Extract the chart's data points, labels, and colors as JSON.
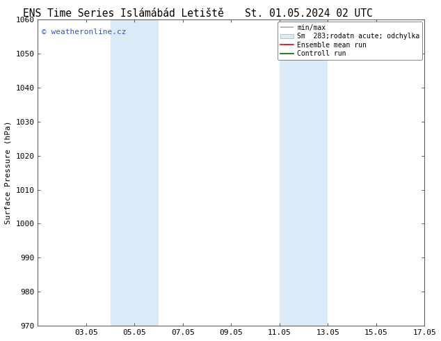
{
  "title": "ENS Time Series Islámábád Letiště",
  "title2": "St. 01.05.2024 02 UTC",
  "ylabel": "Surface Pressure (hPa)",
  "ylim": [
    970,
    1060
  ],
  "yticks": [
    970,
    980,
    990,
    1000,
    1010,
    1020,
    1030,
    1040,
    1050,
    1060
  ],
  "xlim": [
    1,
    17
  ],
  "xtick_labels": [
    "03.05",
    "05.05",
    "07.05",
    "09.05",
    "11.05",
    "13.05",
    "15.05",
    "17.05"
  ],
  "xtick_positions": [
    3,
    5,
    7,
    9,
    11,
    13,
    15,
    17
  ],
  "shade_regions": [
    {
      "start": 4.0,
      "end": 6.0
    },
    {
      "start": 11.0,
      "end": 13.0
    }
  ],
  "shade_color": "#daeaf7",
  "watermark": "© weatheronline.cz",
  "watermark_color": "#3355bb",
  "legend_labels": [
    "min/max",
    "Sm  283;rodatn acute; odchylka",
    "Ensemble mean run",
    "Controll run"
  ],
  "legend_line_color": "#aaaaaa",
  "legend_band_color": "#daeaf7",
  "legend_ens_color": "#dd0000",
  "legend_ctrl_color": "#006600",
  "bg_color": "#ffffff",
  "spine_color": "#555555",
  "title_fontsize": 10.5,
  "label_fontsize": 8,
  "tick_fontsize": 8
}
